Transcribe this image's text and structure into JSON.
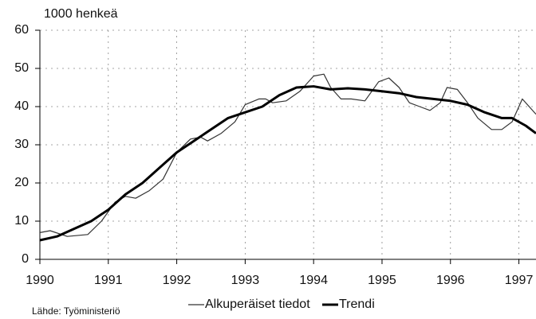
{
  "chart_data": {
    "type": "line",
    "ylabel": "1000 henkeä",
    "source": "Lähde: Työministeriö",
    "xlim": [
      1990,
      1997.25
    ],
    "xticks": [
      1990,
      1991,
      1992,
      1993,
      1994,
      1995,
      1996,
      1997
    ],
    "ylim": [
      0,
      60
    ],
    "yticks": [
      0,
      10,
      20,
      30,
      40,
      50,
      60
    ],
    "grid": true,
    "legend": "bottom",
    "series": [
      {
        "name": "Alkuperäiset tiedot",
        "color": "#333333",
        "x": [
          1990.0,
          1990.15,
          1990.4,
          1990.7,
          1990.9,
          1991.1,
          1991.25,
          1991.4,
          1991.6,
          1991.8,
          1992.0,
          1992.2,
          1992.35,
          1992.45,
          1992.65,
          1992.85,
          1993.0,
          1993.2,
          1993.3,
          1993.4,
          1993.6,
          1993.8,
          1994.0,
          1994.15,
          1994.25,
          1994.4,
          1994.55,
          1994.75,
          1994.95,
          1995.1,
          1995.25,
          1995.4,
          1995.55,
          1995.7,
          1995.85,
          1995.95,
          1996.1,
          1996.25,
          1996.4,
          1996.6,
          1996.75,
          1996.9,
          1997.05,
          1997.15,
          1997.25
        ],
        "values": [
          7,
          7.5,
          6,
          6.5,
          10,
          15,
          16.5,
          16,
          18,
          21,
          28,
          31.5,
          32,
          31,
          33,
          36,
          40.5,
          42,
          42,
          41,
          41.5,
          44,
          48,
          48.5,
          45,
          42,
          42,
          41.5,
          46.5,
          47.5,
          45,
          41,
          40,
          39,
          41,
          45,
          44.5,
          41,
          37,
          34,
          34,
          36,
          42,
          40,
          38
        ]
      },
      {
        "name": "Trendi",
        "color": "#000000",
        "x": [
          1990.0,
          1990.25,
          1990.5,
          1990.75,
          1991.0,
          1991.25,
          1991.5,
          1991.75,
          1992.0,
          1992.25,
          1992.5,
          1992.75,
          1993.0,
          1993.25,
          1993.5,
          1993.75,
          1994.0,
          1994.25,
          1994.5,
          1994.75,
          1995.0,
          1995.25,
          1995.5,
          1995.75,
          1996.0,
          1996.25,
          1996.5,
          1996.75,
          1996.9,
          1997.1,
          1997.25
        ],
        "values": [
          5,
          6,
          8,
          10,
          13,
          17,
          20,
          24,
          28,
          31,
          34,
          37,
          38.5,
          40,
          43,
          45,
          45.3,
          44.5,
          44.8,
          44.5,
          44,
          43.5,
          42.5,
          42,
          41.5,
          40.5,
          38.5,
          37,
          37,
          35,
          33
        ]
      }
    ]
  }
}
